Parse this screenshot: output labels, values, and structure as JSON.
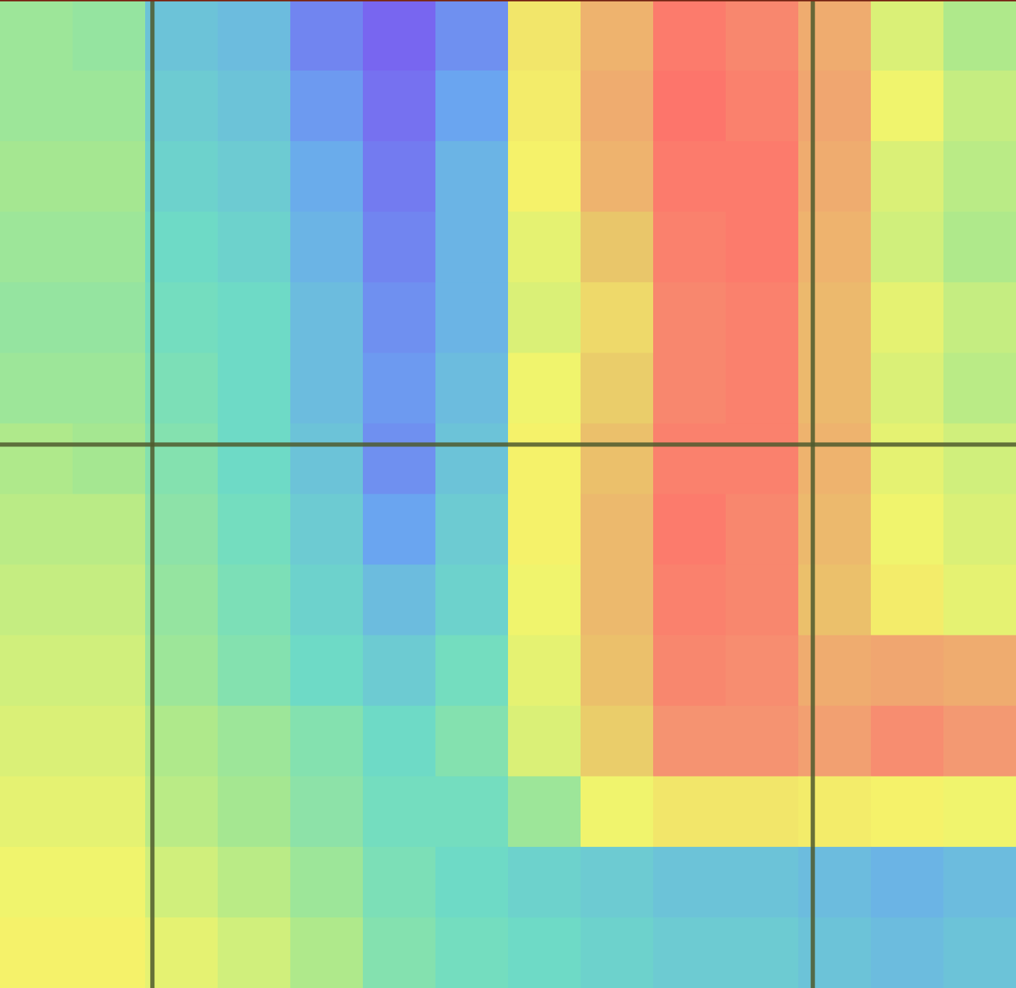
{
  "chart_data": {
    "type": "heatmap",
    "title": "",
    "xlabel": "",
    "ylabel": "",
    "grid": true,
    "colorscale": [
      "#7a5cf0",
      "#6aa6f0",
      "#6edcc4",
      "#a9e88e",
      "#f6f56a",
      "#e9c86a",
      "#f39a72",
      "#ff6f6a"
    ],
    "value_range": [
      0,
      1
    ],
    "columns": 14,
    "rows": 14,
    "grid_lines": {
      "x": [
        2.1,
        11.2
      ],
      "y": [
        6.3
      ]
    },
    "values": [
      [
        0.4,
        0.38,
        0.22,
        0.2,
        0.08,
        0.02,
        0.1,
        0.62,
        0.78,
        0.96,
        0.92,
        0.8,
        0.52,
        0.44
      ],
      [
        0.4,
        0.4,
        0.24,
        0.22,
        0.12,
        0.04,
        0.14,
        0.6,
        0.8,
        0.98,
        0.94,
        0.82,
        0.56,
        0.48
      ],
      [
        0.42,
        0.42,
        0.26,
        0.24,
        0.16,
        0.06,
        0.18,
        0.58,
        0.78,
        0.96,
        0.96,
        0.8,
        0.52,
        0.46
      ],
      [
        0.4,
        0.4,
        0.28,
        0.26,
        0.18,
        0.08,
        0.18,
        0.54,
        0.72,
        0.94,
        0.96,
        0.78,
        0.5,
        0.44
      ],
      [
        0.38,
        0.38,
        0.3,
        0.28,
        0.2,
        0.1,
        0.18,
        0.52,
        0.66,
        0.92,
        0.94,
        0.76,
        0.54,
        0.48
      ],
      [
        0.4,
        0.4,
        0.32,
        0.28,
        0.2,
        0.12,
        0.2,
        0.56,
        0.7,
        0.92,
        0.94,
        0.76,
        0.52,
        0.46
      ],
      [
        0.44,
        0.42,
        0.34,
        0.28,
        0.22,
        0.1,
        0.22,
        0.58,
        0.74,
        0.94,
        0.94,
        0.78,
        0.54,
        0.5
      ],
      [
        0.46,
        0.46,
        0.36,
        0.3,
        0.24,
        0.14,
        0.24,
        0.58,
        0.76,
        0.96,
        0.92,
        0.76,
        0.56,
        0.52
      ],
      [
        0.48,
        0.48,
        0.38,
        0.32,
        0.26,
        0.2,
        0.26,
        0.56,
        0.76,
        0.94,
        0.92,
        0.74,
        0.6,
        0.54
      ],
      [
        0.5,
        0.5,
        0.4,
        0.34,
        0.28,
        0.24,
        0.3,
        0.54,
        0.74,
        0.92,
        0.9,
        0.8,
        0.82,
        0.8
      ],
      [
        0.52,
        0.52,
        0.44,
        0.4,
        0.34,
        0.28,
        0.34,
        0.52,
        0.7,
        0.88,
        0.88,
        0.84,
        0.9,
        0.86
      ],
      [
        0.54,
        0.54,
        0.46,
        0.42,
        0.36,
        0.3,
        0.3,
        0.4,
        0.56,
        0.62,
        0.62,
        0.6,
        0.58,
        0.56
      ],
      [
        0.56,
        0.56,
        0.5,
        0.46,
        0.4,
        0.32,
        0.28,
        0.26,
        0.24,
        0.22,
        0.22,
        0.2,
        0.18,
        0.2
      ],
      [
        0.58,
        0.58,
        0.54,
        0.5,
        0.44,
        0.34,
        0.3,
        0.28,
        0.26,
        0.24,
        0.24,
        0.22,
        0.2,
        0.22
      ]
    ]
  }
}
